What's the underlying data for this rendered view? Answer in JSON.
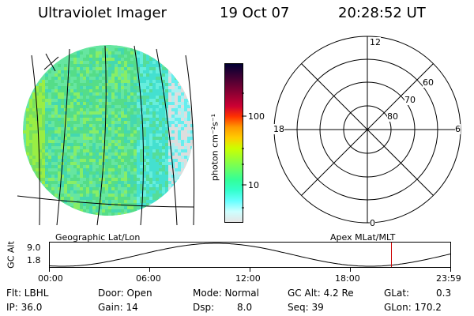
{
  "header": {
    "instrument": "Ultraviolet Imager",
    "date": "19 Oct 07",
    "time": "20:28:52 UT"
  },
  "colorbar": {
    "label": "photon cm⁻²s⁻¹",
    "ticks": [
      "100",
      "10"
    ],
    "colors": [
      "#000033",
      "#330033",
      "#660033",
      "#990033",
      "#cc0033",
      "#ff3300",
      "#ff9900",
      "#ffcc00",
      "#ccff00",
      "#99ff33",
      "#66ff66",
      "#33ff99",
      "#33ffcc",
      "#66ffff",
      "#ccffff",
      "#e6e6e6"
    ]
  },
  "image": {
    "projection_label": "Geographic Lat/Lon"
  },
  "polar_plot": {
    "projection_label": "Apex MLat/MLT",
    "mlt_labels": [
      "12",
      "18",
      "6",
      "0"
    ],
    "mlat_labels": [
      "60",
      "70",
      "80"
    ]
  },
  "altitude_plot": {
    "ylabel": "GC Alt",
    "yticks": [
      "9.0",
      "1.8"
    ],
    "xticks": [
      "00:00",
      "06:00",
      "12:00",
      "18:00",
      "23:59"
    ],
    "cursor_color": "#cc0000",
    "cursor_time_hours": 20.48
  },
  "status": {
    "filter": "Flt: LBHL",
    "ip": "IP: 36.0",
    "door": "Door: Open",
    "gain": "Gain: 14",
    "mode": "Mode: Normal",
    "dsp": "Dsp:",
    "dsp_value": "8.0",
    "gc_alt": "GC Alt: 4.2 Re",
    "seq": "Seq: 39",
    "glat": "GLat:",
    "glat_value": "0.3",
    "glon": "GLon: 170.2"
  }
}
